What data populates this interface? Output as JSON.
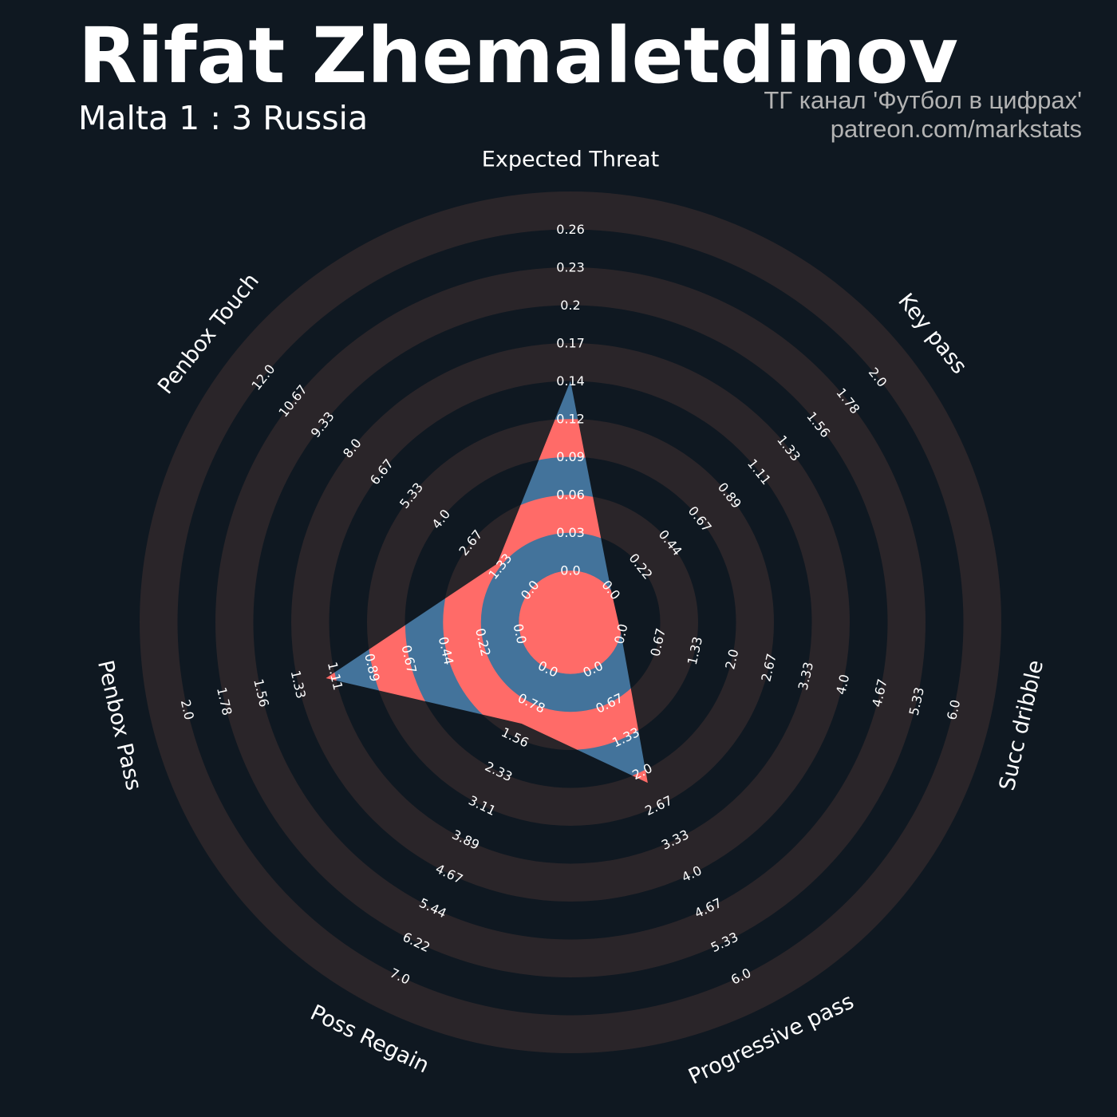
{
  "header": {
    "title": "Rifat Zhemaletdinov",
    "subtitle": "Malta 1 : 3 Russia",
    "credit_line1": "ТГ канал 'Футбол в цифрах'",
    "credit_line2": "patreon.com/markstats"
  },
  "colors": {
    "background": "#0f1821",
    "ring_band": "#2a2529",
    "fill_red": "#ff6b68",
    "fill_blue": "#43739b",
    "text": "#ffffff",
    "credit": "#b3b3b3"
  },
  "chart_data": {
    "type": "radar",
    "params": [
      "Expected Threat",
      "Key pass",
      "Succ dribble",
      "Progressive pass",
      "Poss Regain",
      "Penbox Pass",
      "Penbox Touch"
    ],
    "ranges": [
      [
        0.0,
        0.26
      ],
      [
        0.0,
        2.0
      ],
      [
        0.0,
        6.0
      ],
      [
        0.0,
        6.0
      ],
      [
        0.0,
        7.0
      ],
      [
        0.0,
        2.0
      ],
      [
        0.0,
        12.0
      ]
    ],
    "ticks": [
      [
        "0.0",
        "0.03",
        "0.06",
        "0.09",
        "0.12",
        "0.14",
        "0.17",
        "0.2",
        "0.23",
        "0.26"
      ],
      [
        "0.0",
        "0.22",
        "0.44",
        "0.67",
        "0.89",
        "1.11",
        "1.33",
        "1.56",
        "1.78",
        "2.0"
      ],
      [
        "0.0",
        "0.67",
        "1.33",
        "2.0",
        "2.67",
        "3.33",
        "4.0",
        "4.67",
        "5.33",
        "6.0"
      ],
      [
        "0.0",
        "0.67",
        "1.33",
        "2.0",
        "2.67",
        "3.33",
        "4.0",
        "4.67",
        "5.33",
        "6.0"
      ],
      [
        "0.0",
        "0.78",
        "1.56",
        "2.33",
        "3.11",
        "3.89",
        "4.67",
        "5.44",
        "6.22",
        "7.0"
      ],
      [
        "0.0",
        "0.22",
        "0.44",
        "0.67",
        "0.89",
        "1.11",
        "1.33",
        "1.56",
        "1.78",
        "2.0"
      ],
      [
        "0.0",
        "1.33",
        "2.67",
        "4.0",
        "5.33",
        "6.67",
        "8.0",
        "9.33",
        "10.67",
        "12.0"
      ]
    ],
    "values": [
      0.13,
      0.0,
      0.0,
      2.0,
      1.12,
      1.05,
      1.33
    ]
  }
}
